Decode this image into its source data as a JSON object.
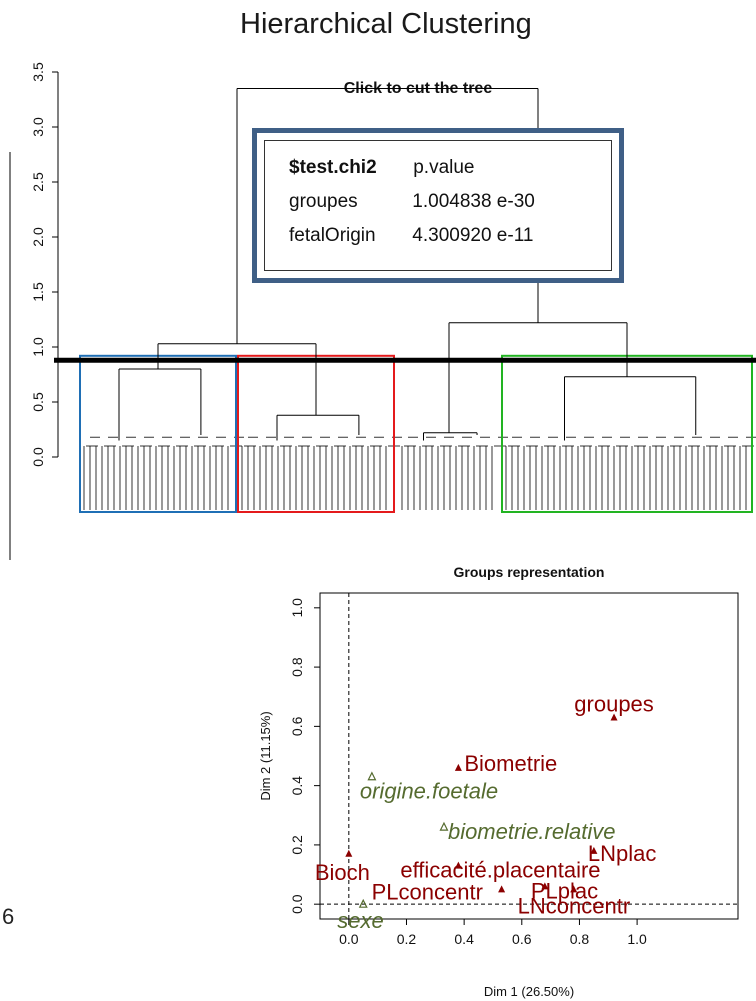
{
  "page_title": "Hierarchical Clustering",
  "left_edge_text": "6",
  "info_box": {
    "title": "$test.chi2",
    "col_header": "p.value",
    "rows": [
      {
        "label": "groupes",
        "value": "1.004838 e-30"
      },
      {
        "label": "fetalOrigin",
        "value": "4.300920 e-11"
      }
    ]
  },
  "colors": {
    "cluster_blue": "#1f6fb5",
    "cluster_red": "#e41a1c",
    "cluster_green": "#22b422",
    "cut_line": "#000000",
    "active_var": "#8b0000",
    "suppl_var": "#556b2f",
    "info_border": "#3f5f86"
  },
  "chart_data": [
    {
      "type": "dendrogram",
      "title": "Click to cut the tree",
      "ylim": [
        0,
        3.5
      ],
      "yticks": [
        "0.0",
        "0.5",
        "1.0",
        "1.5",
        "2.0",
        "2.5",
        "3.0",
        "3.5"
      ],
      "cut_height": 0.88,
      "clusters": [
        {
          "color": "blue",
          "merge_height": 0.8
        },
        {
          "color": "red",
          "merge_height": 0.38
        },
        {
          "color": "black",
          "merge_height": 0.22
        },
        {
          "color": "green",
          "merge_height": 0.73
        }
      ],
      "merges": [
        {
          "left": "blue",
          "right": "red",
          "height": 1.03
        },
        {
          "left": "black",
          "right": "green",
          "height": 1.22
        },
        {
          "left": "left-pair",
          "right": "right-pair",
          "height": 3.35
        }
      ]
    },
    {
      "type": "scatter",
      "title": "Groups representation",
      "xlabel": "Dim 1 (26.50%)",
      "ylabel": "Dim 2 (11.15%)",
      "xlim": [
        -0.1,
        1.35
      ],
      "ylim": [
        -0.05,
        1.05
      ],
      "xticks": [
        "0.0",
        "0.2",
        "0.4",
        "0.6",
        "0.8",
        "1.0"
      ],
      "yticks": [
        "0.0",
        "0.2",
        "0.4",
        "0.6",
        "0.8",
        "1.0"
      ],
      "points": [
        {
          "label": "groupes",
          "x": 0.92,
          "y": 0.63,
          "kind": "active"
        },
        {
          "label": "Biometrie",
          "x": 0.38,
          "y": 0.46,
          "kind": "active"
        },
        {
          "label": "origine.foetale",
          "x": 0.08,
          "y": 0.43,
          "kind": "suppl"
        },
        {
          "label": "biometrie.relative",
          "x": 0.33,
          "y": 0.26,
          "kind": "suppl"
        },
        {
          "label": "LNplac",
          "x": 0.85,
          "y": 0.18,
          "kind": "active"
        },
        {
          "label": "efficacité.placentaire",
          "x": 0.38,
          "y": 0.13,
          "kind": "active"
        },
        {
          "label": "Bioch",
          "x": 0.0,
          "y": 0.17,
          "kind": "active"
        },
        {
          "label": "PLconcentr",
          "x": 0.53,
          "y": 0.05,
          "kind": "active"
        },
        {
          "label": "PLplac",
          "x": 0.68,
          "y": 0.06,
          "kind": "active"
        },
        {
          "label": "LNconcentr",
          "x": 0.78,
          "y": 0.05,
          "kind": "active"
        },
        {
          "label": "sexe",
          "x": 0.05,
          "y": 0.0,
          "kind": "suppl"
        }
      ]
    }
  ]
}
